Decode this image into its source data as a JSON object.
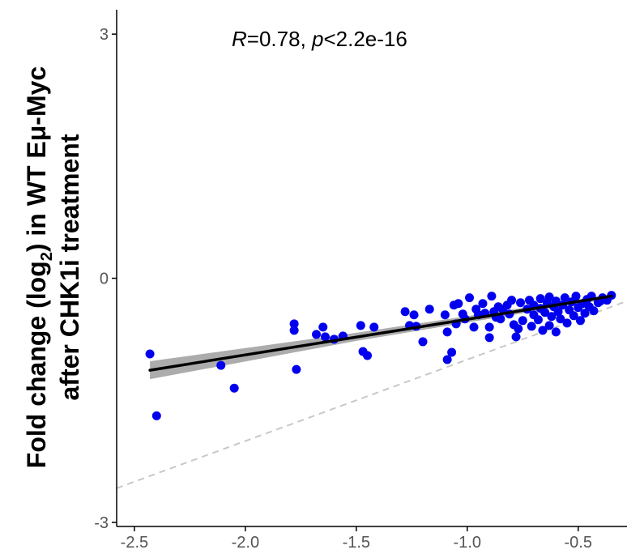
{
  "chart_data": {
    "type": "scatter",
    "title": "",
    "xlabel": "",
    "ylabel_line1_prefix": "Fold change (log",
    "ylabel_line1_sub": "2",
    "ylabel_line1_suffix": ") in WT Eμ-Myc",
    "ylabel_line2": "after CHK1i treatment",
    "annotation": {
      "r_symbol": "R",
      "r_text": "=0.78, ",
      "p_symbol": "p",
      "p_text": "<2.2e-16"
    },
    "xlim": [
      -2.58,
      -0.28
    ],
    "ylim": [
      -3.05,
      3.3
    ],
    "x_ticks": [
      -2.5,
      -2.0,
      -1.5,
      -1.0,
      -0.5
    ],
    "x_tick_labels": [
      "-2.5",
      "-2.0",
      "-1.5",
      "-1.0",
      "-0.5"
    ],
    "y_ticks": [
      -3,
      0,
      3
    ],
    "y_tick_labels": [
      "-3",
      "0",
      "3"
    ],
    "grid": false,
    "point_color": "#0000ee",
    "fit_color": "#000000",
    "ci_color": "#9e9e9e",
    "identity_line_color": "#c8c8c8",
    "fit_line": {
      "x": [
        -2.43,
        -0.35
      ],
      "y": [
        -1.13,
        -0.22
      ]
    },
    "ci_band": {
      "x": [
        -2.43,
        -1.5,
        -0.35
      ],
      "upper": [
        -1.02,
        -0.67,
        -0.2
      ],
      "lower": [
        -1.24,
        -0.77,
        -0.25
      ]
    },
    "identity_line": {
      "x": [
        -2.58,
        -0.28
      ],
      "y": [
        -2.58,
        -0.28
      ]
    },
    "points": [
      [
        -2.43,
        -0.93
      ],
      [
        -2.4,
        -1.69
      ],
      [
        -2.11,
        -1.07
      ],
      [
        -2.05,
        -1.35
      ],
      [
        -1.78,
        -0.56
      ],
      [
        -1.78,
        -0.64
      ],
      [
        -1.77,
        -1.12
      ],
      [
        -1.68,
        -0.69
      ],
      [
        -1.65,
        -0.6
      ],
      [
        -1.64,
        -0.72
      ],
      [
        -1.6,
        -0.75
      ],
      [
        -1.56,
        -0.71
      ],
      [
        -1.48,
        -0.58
      ],
      [
        -1.47,
        -0.9
      ],
      [
        -1.45,
        -0.95
      ],
      [
        -1.42,
        -0.6
      ],
      [
        -1.28,
        -0.41
      ],
      [
        -1.26,
        -0.58
      ],
      [
        -1.24,
        -0.45
      ],
      [
        -1.23,
        -0.59
      ],
      [
        -1.2,
        -0.78
      ],
      [
        -1.17,
        -0.38
      ],
      [
        -1.1,
        -0.45
      ],
      [
        -1.09,
        -0.66
      ],
      [
        -1.09,
        -1.0
      ],
      [
        -1.07,
        -0.91
      ],
      [
        -1.06,
        -0.33
      ],
      [
        -1.05,
        -0.56
      ],
      [
        -1.04,
        -0.31
      ],
      [
        -1.02,
        -0.44
      ],
      [
        -1.01,
        -0.5
      ],
      [
        -0.99,
        -0.24
      ],
      [
        -0.97,
        -0.6
      ],
      [
        -0.96,
        -0.38
      ],
      [
        -0.95,
        -0.45
      ],
      [
        -0.93,
        -0.31
      ],
      [
        -0.92,
        -0.43
      ],
      [
        -0.9,
        -0.6
      ],
      [
        -0.9,
        -0.73
      ],
      [
        -0.89,
        -0.22
      ],
      [
        -0.88,
        -0.41
      ],
      [
        -0.87,
        -0.48
      ],
      [
        -0.86,
        -0.35
      ],
      [
        -0.85,
        -0.5
      ],
      [
        -0.84,
        -0.38
      ],
      [
        -0.82,
        -0.33
      ],
      [
        -0.81,
        -0.44
      ],
      [
        -0.8,
        -0.27
      ],
      [
        -0.79,
        -0.57
      ],
      [
        -0.78,
        -0.72
      ],
      [
        -0.77,
        -0.62
      ],
      [
        -0.76,
        -0.3
      ],
      [
        -0.75,
        -0.52
      ],
      [
        -0.73,
        -0.38
      ],
      [
        -0.72,
        -0.27
      ],
      [
        -0.71,
        -0.59
      ],
      [
        -0.7,
        -0.45
      ],
      [
        -0.7,
        -0.33
      ],
      [
        -0.68,
        -0.51
      ],
      [
        -0.67,
        -0.37
      ],
      [
        -0.67,
        -0.25
      ],
      [
        -0.66,
        -0.64
      ],
      [
        -0.65,
        -0.42
      ],
      [
        -0.64,
        -0.3
      ],
      [
        -0.63,
        -0.58
      ],
      [
        -0.63,
        -0.23
      ],
      [
        -0.62,
        -0.47
      ],
      [
        -0.61,
        -0.35
      ],
      [
        -0.6,
        -0.66
      ],
      [
        -0.6,
        -0.28
      ],
      [
        -0.59,
        -0.41
      ],
      [
        -0.58,
        -0.5
      ],
      [
        -0.57,
        -0.33
      ],
      [
        -0.56,
        -0.24
      ],
      [
        -0.55,
        -0.55
      ],
      [
        -0.54,
        -0.39
      ],
      [
        -0.53,
        -0.29
      ],
      [
        -0.52,
        -0.46
      ],
      [
        -0.51,
        -0.22
      ],
      [
        -0.5,
        -0.36
      ],
      [
        -0.49,
        -0.52
      ],
      [
        -0.48,
        -0.31
      ],
      [
        -0.47,
        -0.43
      ],
      [
        -0.46,
        -0.26
      ],
      [
        -0.45,
        -0.35
      ],
      [
        -0.44,
        -0.22
      ],
      [
        -0.43,
        -0.4
      ],
      [
        -0.41,
        -0.3
      ],
      [
        -0.4,
        -0.28
      ],
      [
        -0.39,
        -0.24
      ],
      [
        -0.37,
        -0.27
      ],
      [
        -0.35,
        -0.21
      ]
    ]
  }
}
